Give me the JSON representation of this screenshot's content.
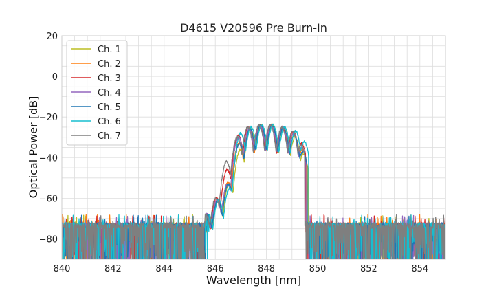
{
  "chart_data": {
    "type": "line",
    "title": "D4615 V20596 Pre Burn-In",
    "xlabel": "Wavelength [nm]",
    "ylabel": "Optical Power [dB]",
    "xlim": [
      840,
      855
    ],
    "ylim": [
      -90,
      20
    ],
    "xticks": [
      840,
      842,
      844,
      846,
      848,
      850,
      852,
      854
    ],
    "yticks": [
      20,
      0,
      -20,
      -40,
      -60,
      -80
    ],
    "xtick_labels": [
      "840",
      "842",
      "844",
      "846",
      "848",
      "850",
      "852",
      "854"
    ],
    "ytick_labels": [
      "20",
      "0",
      "−20",
      "−40",
      "−60",
      "−80"
    ],
    "grid": true,
    "legend_position": "top-left",
    "noise_floor_db": -74,
    "spectrum_edges_nm": [
      845.6,
      849.6
    ],
    "series": [
      {
        "name": "Ch. 1",
        "color": "#bcbd22",
        "shift_nm": 0.08,
        "peaks": [
          [
            845.72,
            -68
          ],
          [
            846.12,
            -61
          ],
          [
            846.55,
            -53
          ],
          [
            846.98,
            -36
          ],
          [
            847.38,
            -26
          ],
          [
            847.8,
            -24
          ],
          [
            848.25,
            -24
          ],
          [
            848.7,
            -25
          ],
          [
            849.12,
            -30
          ],
          [
            849.45,
            -38
          ]
        ]
      },
      {
        "name": "Ch. 2",
        "color": "#ff7f0e",
        "shift_nm": 0.02,
        "peaks": [
          [
            845.68,
            -68
          ],
          [
            846.08,
            -61
          ],
          [
            846.5,
            -52
          ],
          [
            846.92,
            -33
          ],
          [
            847.33,
            -26
          ],
          [
            847.76,
            -24
          ],
          [
            848.2,
            -24
          ],
          [
            848.65,
            -25
          ],
          [
            849.07,
            -28
          ],
          [
            849.4,
            -36
          ]
        ]
      },
      {
        "name": "Ch. 3",
        "color": "#d62728",
        "shift_nm": -0.02,
        "peaks": [
          [
            845.65,
            -68
          ],
          [
            846.05,
            -60
          ],
          [
            846.47,
            -46
          ],
          [
            846.9,
            -29
          ],
          [
            847.3,
            -25
          ],
          [
            847.74,
            -24
          ],
          [
            848.17,
            -24
          ],
          [
            848.62,
            -25
          ],
          [
            849.05,
            -27
          ],
          [
            849.38,
            -33
          ]
        ]
      },
      {
        "name": "Ch. 4",
        "color": "#9467bd",
        "shift_nm": 0.0,
        "peaks": [
          [
            845.67,
            -68
          ],
          [
            846.07,
            -61
          ],
          [
            846.48,
            -53
          ],
          [
            846.91,
            -30
          ],
          [
            847.32,
            -26
          ],
          [
            847.75,
            -24
          ],
          [
            848.19,
            -24
          ],
          [
            848.64,
            -25
          ],
          [
            849.06,
            -28
          ],
          [
            849.39,
            -35
          ]
        ]
      },
      {
        "name": "Ch. 5",
        "color": "#1f77b4",
        "shift_nm": 0.04,
        "peaks": [
          [
            845.7,
            -68
          ],
          [
            846.1,
            -61
          ],
          [
            846.52,
            -53
          ],
          [
            846.95,
            -33
          ],
          [
            847.36,
            -26
          ],
          [
            847.78,
            -24
          ],
          [
            848.22,
            -24
          ],
          [
            848.67,
            -25
          ],
          [
            849.09,
            -29
          ],
          [
            849.42,
            -37
          ]
        ]
      },
      {
        "name": "Ch. 6",
        "color": "#17becf",
        "shift_nm": 0.1,
        "peaks": [
          [
            845.74,
            -68
          ],
          [
            846.14,
            -61
          ],
          [
            846.56,
            -55
          ],
          [
            846.99,
            -28
          ],
          [
            847.4,
            -25
          ],
          [
            847.82,
            -24
          ],
          [
            848.26,
            -24
          ],
          [
            848.71,
            -25
          ],
          [
            849.14,
            -27
          ],
          [
            849.48,
            -32
          ]
        ]
      },
      {
        "name": "Ch. 7",
        "color": "#7f7f7f",
        "shift_nm": -0.05,
        "peaks": [
          [
            845.62,
            -68
          ],
          [
            846.02,
            -60
          ],
          [
            846.44,
            -42
          ],
          [
            846.86,
            -30
          ],
          [
            847.27,
            -25
          ],
          [
            847.71,
            -24
          ],
          [
            848.15,
            -24
          ],
          [
            848.6,
            -25
          ],
          [
            849.02,
            -27
          ],
          [
            849.35,
            -34
          ]
        ]
      }
    ]
  }
}
